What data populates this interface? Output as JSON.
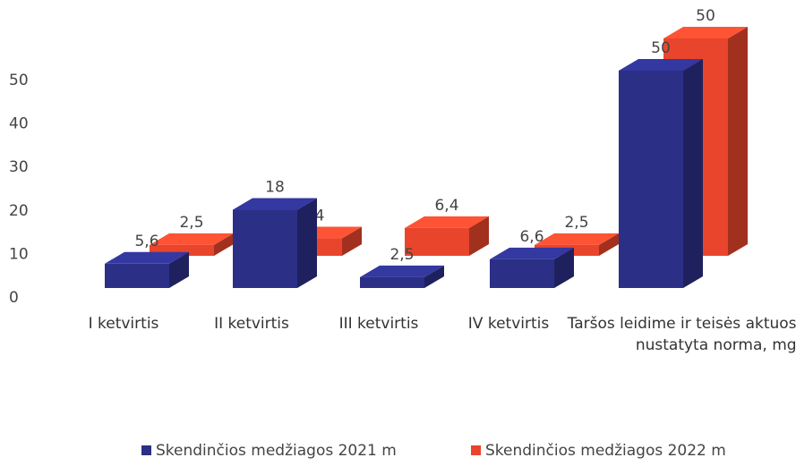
{
  "chart_data": {
    "type": "bar3d",
    "categories": [
      "I ketvirtis",
      "II ketvirtis",
      "III ketvirtis",
      "IV ketvirtis",
      "Taršos leidime ir teisės aktuose nustatyta norma, mg/l"
    ],
    "series": [
      {
        "name": "Skendinčios medžiagos 2021 m",
        "color": "#2b2f86",
        "values": [
          5.6,
          18,
          2.5,
          6.6,
          50
        ],
        "value_labels": [
          "5,6",
          "18",
          "2,5",
          "6,6",
          "50"
        ]
      },
      {
        "name": "Skendinčios medžiagos 2022 m",
        "color": "#e8452c",
        "values": [
          2.5,
          4,
          6.4,
          2.5,
          50
        ],
        "value_labels": [
          "2,5",
          "4",
          "6,4",
          "2,5",
          "50"
        ]
      }
    ],
    "ylim": [
      0,
      60
    ],
    "yticks": [
      0,
      10,
      20,
      30,
      40,
      50
    ],
    "grid": false,
    "legend": "bottom"
  }
}
